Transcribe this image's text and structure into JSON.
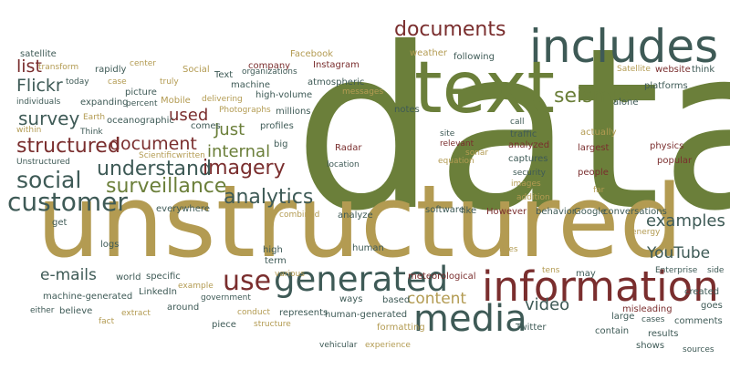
{
  "palette": {
    "olive": "#6b7f3a",
    "gold": "#b39b52",
    "maroon": "#7a2e2e",
    "slate": "#3e5a56",
    "tan": "#cbb26a"
  },
  "words": [
    {
      "text": "data",
      "color": "olive",
      "weight": 10
    },
    {
      "text": "unstructured",
      "color": "gold",
      "weight": 9
    },
    {
      "text": "text",
      "color": "olive",
      "weight": 7
    },
    {
      "text": "includes",
      "color": "slate",
      "weight": 6
    },
    {
      "text": "information",
      "color": "maroon",
      "weight": 6
    },
    {
      "text": "media",
      "color": "slate",
      "weight": 5
    },
    {
      "text": "generated",
      "color": "slate",
      "weight": 5
    },
    {
      "text": "customer",
      "color": "slate",
      "weight": 4
    },
    {
      "text": "use",
      "color": "maroon",
      "weight": 4
    },
    {
      "text": "social",
      "color": "slate",
      "weight": 4
    },
    {
      "text": "documents",
      "color": "maroon",
      "weight": 3
    },
    {
      "text": "structured",
      "color": "maroon",
      "weight": 3
    },
    {
      "text": "surveillance",
      "color": "olive",
      "weight": 3
    },
    {
      "text": "understand",
      "color": "slate",
      "weight": 3
    },
    {
      "text": "imagery",
      "color": "maroon",
      "weight": 3
    },
    {
      "text": "analytics",
      "color": "slate",
      "weight": 3
    },
    {
      "text": "seismic",
      "color": "olive",
      "weight": 3
    },
    {
      "text": "document",
      "color": "maroon",
      "weight": 3
    },
    {
      "text": "Flickr",
      "color": "slate",
      "weight": 3
    },
    {
      "text": "internal",
      "color": "olive",
      "weight": 3
    },
    {
      "text": "video",
      "color": "slate",
      "weight": 3
    },
    {
      "text": "content",
      "color": "gold",
      "weight": 3
    },
    {
      "text": "e-mails",
      "color": "slate",
      "weight": 3
    },
    {
      "text": "survey",
      "color": "slate",
      "weight": 3
    },
    {
      "text": "examples",
      "color": "slate",
      "weight": 3
    },
    {
      "text": "YouTube",
      "color": "slate",
      "weight": 3
    },
    {
      "text": "Just",
      "color": "olive",
      "weight": 3
    },
    {
      "text": "used",
      "color": "maroon",
      "weight": 2
    },
    {
      "text": "list",
      "color": "maroon",
      "weight": 2
    },
    {
      "text": "satellite",
      "color": "slate",
      "weight": 1
    },
    {
      "text": "transform",
      "color": "gold",
      "weight": 1
    },
    {
      "text": "rapidly",
      "color": "slate",
      "weight": 1
    },
    {
      "text": "center",
      "color": "gold",
      "weight": 1
    },
    {
      "text": "Social",
      "color": "gold",
      "weight": 1
    },
    {
      "text": "company",
      "color": "maroon",
      "weight": 1
    },
    {
      "text": "Facebook",
      "color": "gold",
      "weight": 1
    },
    {
      "text": "Instagram",
      "color": "maroon",
      "weight": 1
    },
    {
      "text": "weather",
      "color": "gold",
      "weight": 1
    },
    {
      "text": "following",
      "color": "slate",
      "weight": 1
    },
    {
      "text": "Satellite",
      "color": "gold",
      "weight": 1
    },
    {
      "text": "website",
      "color": "maroon",
      "weight": 1
    },
    {
      "text": "think",
      "color": "slate",
      "weight": 1
    },
    {
      "text": "platforms",
      "color": "slate",
      "weight": 1
    },
    {
      "text": "alone",
      "color": "slate",
      "weight": 1
    },
    {
      "text": "today",
      "color": "slate",
      "weight": 1
    },
    {
      "text": "case",
      "color": "gold",
      "weight": 1
    },
    {
      "text": "truly",
      "color": "gold",
      "weight": 1
    },
    {
      "text": "Text",
      "color": "slate",
      "weight": 1
    },
    {
      "text": "machine",
      "color": "slate",
      "weight": 1
    },
    {
      "text": "organizations",
      "color": "slate",
      "weight": 1
    },
    {
      "text": "atmospheric",
      "color": "slate",
      "weight": 1
    },
    {
      "text": "messages",
      "color": "gold",
      "weight": 1
    },
    {
      "text": "picture",
      "color": "slate",
      "weight": 1
    },
    {
      "text": "Mobile",
      "color": "gold",
      "weight": 1
    },
    {
      "text": "high-volume",
      "color": "slate",
      "weight": 1
    },
    {
      "text": "delivering",
      "color": "gold",
      "weight": 1
    },
    {
      "text": "individuals",
      "color": "slate",
      "weight": 1
    },
    {
      "text": "expanding",
      "color": "slate",
      "weight": 1
    },
    {
      "text": "percent",
      "color": "slate",
      "weight": 1
    },
    {
      "text": "Photographs",
      "color": "gold",
      "weight": 1
    },
    {
      "text": "millions",
      "color": "slate",
      "weight": 1
    },
    {
      "text": "notes",
      "color": "slate",
      "weight": 1
    },
    {
      "text": "within",
      "color": "gold",
      "weight": 1
    },
    {
      "text": "Earth",
      "color": "gold",
      "weight": 1
    },
    {
      "text": "oceanographic",
      "color": "slate",
      "weight": 1
    },
    {
      "text": "Think",
      "color": "slate",
      "weight": 1
    },
    {
      "text": "comes",
      "color": "slate",
      "weight": 1
    },
    {
      "text": "profiles",
      "color": "slate",
      "weight": 1
    },
    {
      "text": "call",
      "color": "slate",
      "weight": 1
    },
    {
      "text": "actually",
      "color": "gold",
      "weight": 1
    },
    {
      "text": "site",
      "color": "slate",
      "weight": 1
    },
    {
      "text": "traffic",
      "color": "slate",
      "weight": 1
    },
    {
      "text": "relevant",
      "color": "maroon",
      "weight": 1
    },
    {
      "text": "analyzed",
      "color": "maroon",
      "weight": 1
    },
    {
      "text": "largest",
      "color": "maroon",
      "weight": 1
    },
    {
      "text": "physics",
      "color": "maroon",
      "weight": 1
    },
    {
      "text": "Unstructured",
      "color": "slate",
      "weight": 1
    },
    {
      "text": "Scientific",
      "color": "gold",
      "weight": 1
    },
    {
      "text": "written",
      "color": "gold",
      "weight": 1
    },
    {
      "text": "big",
      "color": "slate",
      "weight": 1
    },
    {
      "text": "Radar",
      "color": "maroon",
      "weight": 1
    },
    {
      "text": "sonar",
      "color": "gold",
      "weight": 1
    },
    {
      "text": "equation",
      "color": "gold",
      "weight": 1
    },
    {
      "text": "location",
      "color": "slate",
      "weight": 1
    },
    {
      "text": "captures",
      "color": "slate",
      "weight": 1
    },
    {
      "text": "popular",
      "color": "maroon",
      "weight": 1
    },
    {
      "text": "security",
      "color": "slate",
      "weight": 1
    },
    {
      "text": "people",
      "color": "maroon",
      "weight": 1
    },
    {
      "text": "images",
      "color": "gold",
      "weight": 1
    },
    {
      "text": "addition",
      "color": "gold",
      "weight": 1
    },
    {
      "text": "far",
      "color": "gold",
      "weight": 1
    },
    {
      "text": "everywhere",
      "color": "slate",
      "weight": 1
    },
    {
      "text": "combined",
      "color": "gold",
      "weight": 1
    },
    {
      "text": "analyze",
      "color": "slate",
      "weight": 1
    },
    {
      "text": "software",
      "color": "slate",
      "weight": 1
    },
    {
      "text": "like",
      "color": "slate",
      "weight": 1
    },
    {
      "text": "However",
      "color": "maroon",
      "weight": 1
    },
    {
      "text": "behavior",
      "color": "slate",
      "weight": 1
    },
    {
      "text": "Google",
      "color": "slate",
      "weight": 1
    },
    {
      "text": "conversations",
      "color": "slate",
      "weight": 1
    },
    {
      "text": "energy",
      "color": "gold",
      "weight": 1
    },
    {
      "text": "get",
      "color": "slate",
      "weight": 1
    },
    {
      "text": "logs",
      "color": "slate",
      "weight": 1
    },
    {
      "text": "high",
      "color": "slate",
      "weight": 1
    },
    {
      "text": "term",
      "color": "slate",
      "weight": 1
    },
    {
      "text": "human",
      "color": "slate",
      "weight": 1
    },
    {
      "text": "lives",
      "color": "gold",
      "weight": 1
    },
    {
      "text": "tens",
      "color": "gold",
      "weight": 1
    },
    {
      "text": "may",
      "color": "slate",
      "weight": 1
    },
    {
      "text": "Enterprise",
      "color": "slate",
      "weight": 1
    },
    {
      "text": "side",
      "color": "slate",
      "weight": 1
    },
    {
      "text": "world",
      "color": "slate",
      "weight": 1
    },
    {
      "text": "specific",
      "color": "slate",
      "weight": 1
    },
    {
      "text": "various",
      "color": "gold",
      "weight": 1
    },
    {
      "text": "meteorological",
      "color": "maroon",
      "weight": 1
    },
    {
      "text": "created",
      "color": "slate",
      "weight": 1
    },
    {
      "text": "LinkedIn",
      "color": "slate",
      "weight": 1
    },
    {
      "text": "example",
      "color": "gold",
      "weight": 1
    },
    {
      "text": "ways",
      "color": "slate",
      "weight": 1
    },
    {
      "text": "based",
      "color": "slate",
      "weight": 1
    },
    {
      "text": "goes",
      "color": "slate",
      "weight": 1
    },
    {
      "text": "machine-generated",
      "color": "slate",
      "weight": 1
    },
    {
      "text": "around",
      "color": "slate",
      "weight": 1
    },
    {
      "text": "government",
      "color": "slate",
      "weight": 1
    },
    {
      "text": "conduct",
      "color": "gold",
      "weight": 1
    },
    {
      "text": "represents",
      "color": "slate",
      "weight": 1
    },
    {
      "text": "human-generated",
      "color": "slate",
      "weight": 1
    },
    {
      "text": "misleading",
      "color": "maroon",
      "weight": 1
    },
    {
      "text": "either",
      "color": "slate",
      "weight": 1
    },
    {
      "text": "believe",
      "color": "slate",
      "weight": 1
    },
    {
      "text": "extract",
      "color": "gold",
      "weight": 1
    },
    {
      "text": "large",
      "color": "slate",
      "weight": 1
    },
    {
      "text": "cases",
      "color": "slate",
      "weight": 1
    },
    {
      "text": "comments",
      "color": "slate",
      "weight": 1
    },
    {
      "text": "fact",
      "color": "gold",
      "weight": 1
    },
    {
      "text": "piece",
      "color": "slate",
      "weight": 1
    },
    {
      "text": "structure",
      "color": "gold",
      "weight": 1
    },
    {
      "text": "formatting",
      "color": "gold",
      "weight": 1
    },
    {
      "text": "Twitter",
      "color": "slate",
      "weight": 1
    },
    {
      "text": "contain",
      "color": "slate",
      "weight": 1
    },
    {
      "text": "results",
      "color": "slate",
      "weight": 1
    },
    {
      "text": "vehicular",
      "color": "slate",
      "weight": 1
    },
    {
      "text": "experience",
      "color": "gold",
      "weight": 1
    },
    {
      "text": "shows",
      "color": "slate",
      "weight": 1
    },
    {
      "text": "sources",
      "color": "slate",
      "weight": 1
    }
  ]
}
